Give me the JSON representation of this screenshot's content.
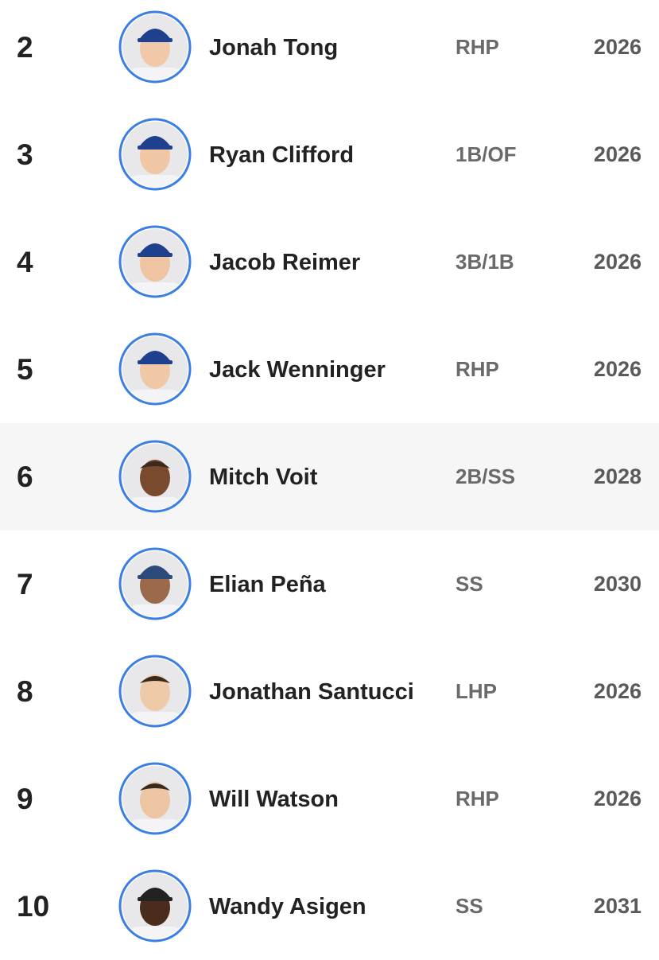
{
  "rows": [
    {
      "rank": 2,
      "name": "Jonah Tong",
      "position": "RHP",
      "year": 2026
    },
    {
      "rank": 3,
      "name": "Ryan Clifford",
      "position": "1B/OF",
      "year": 2026
    },
    {
      "rank": 4,
      "name": "Jacob Reimer",
      "position": "3B/1B",
      "year": 2026
    },
    {
      "rank": 5,
      "name": "Jack Wenninger",
      "position": "RHP",
      "year": 2026
    },
    {
      "rank": 6,
      "name": "Mitch Voit",
      "position": "2B/SS",
      "year": 2028
    },
    {
      "rank": 7,
      "name": "Elian Peña",
      "position": "SS",
      "year": 2030
    },
    {
      "rank": 8,
      "name": "Jonathan Santucci",
      "position": "LHP",
      "year": 2026
    },
    {
      "rank": 9,
      "name": "Will Watson",
      "position": "RHP",
      "year": 2026
    },
    {
      "rank": 10,
      "name": "Wandy Asigen",
      "position": "SS",
      "year": 2031
    }
  ]
}
